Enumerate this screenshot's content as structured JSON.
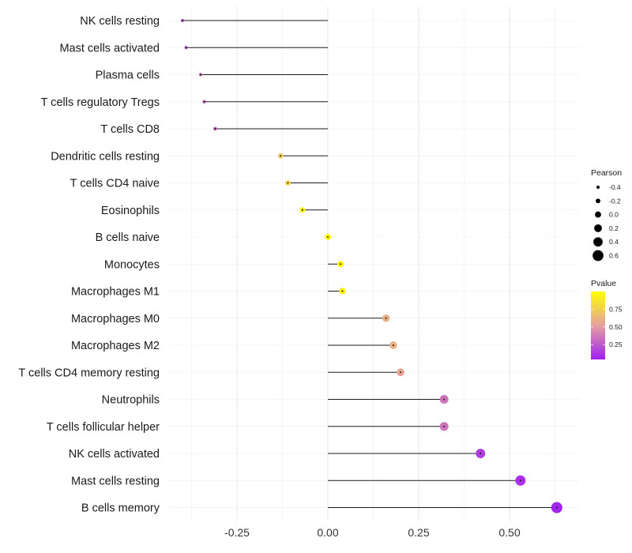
{
  "chart_data": {
    "type": "lollipop",
    "title": "",
    "xlabel": "",
    "ylabel": "",
    "xlim": [
      -0.45,
      0.68
    ],
    "x_ticks": [
      -0.25,
      0.0,
      0.25,
      0.5
    ],
    "x_tick_labels": [
      "-0.25",
      "0.00",
      "0.25",
      "0.50"
    ],
    "grid": true,
    "categories": [
      "NK cells resting",
      "Mast cells activated",
      "Plasma cells",
      "T cells regulatory  Tregs",
      "T cells CD8",
      "Dendritic cells resting",
      "T cells CD4 naive",
      "Eosinophils",
      "B cells naive",
      "Monocytes",
      "Macrophages M1",
      "Macrophages M0",
      "Macrophages M2",
      "T cells CD4 memory resting",
      "Neutrophils",
      "T cells follicular helper",
      "NK cells activated",
      "Mast cells resting",
      "B cells memory"
    ],
    "values": [
      -0.4,
      -0.39,
      -0.35,
      -0.34,
      -0.31,
      -0.13,
      -0.11,
      -0.07,
      0.0,
      0.035,
      0.04,
      0.16,
      0.18,
      0.2,
      0.32,
      0.32,
      0.42,
      0.53,
      0.63
    ],
    "pvalues": [
      0.2,
      0.2,
      0.35,
      0.3,
      0.3,
      0.75,
      0.8,
      0.92,
      1.0,
      0.95,
      0.92,
      0.6,
      0.6,
      0.55,
      0.35,
      0.35,
      0.15,
      0.1,
      0.05
    ],
    "legend_size": {
      "title": "Pearson",
      "labels": [
        "-0.4",
        "-0.2",
        "0.0",
        "0.2",
        "0.4",
        "0.6"
      ],
      "values": [
        -0.4,
        -0.2,
        0.0,
        0.2,
        0.4,
        0.6
      ]
    },
    "legend_color": {
      "title": "Pvalue",
      "labels": [
        "0.75",
        "0.50",
        "0.25"
      ],
      "values": [
        0.75,
        0.5,
        0.25
      ],
      "range": [
        0.04,
        1.0
      ],
      "color_low": "#a020f0",
      "color_mid": "#e5a0a0",
      "color_high": "#ffff00"
    },
    "legend_position": "right"
  }
}
